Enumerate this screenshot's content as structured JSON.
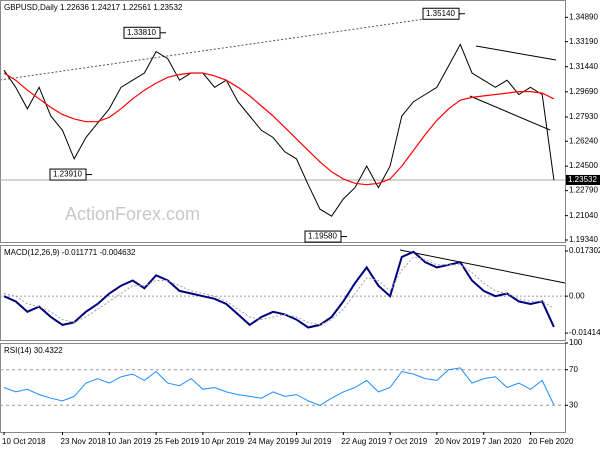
{
  "chart_data": [
    {
      "type": "line",
      "title": "GBPUSD,Daily 1.22636 1.24217 1.22561 1.23532",
      "watermark": "ActionForex.com",
      "ylim": [
        1.192,
        1.361
      ],
      "yticks": [
        {
          "value": 1.3489,
          "label": "1.34890"
        },
        {
          "value": 1.3319,
          "label": "1.33190"
        },
        {
          "value": 1.3144,
          "label": "1.31440"
        },
        {
          "value": 1.2969,
          "label": "1.29690"
        },
        {
          "value": 1.2793,
          "label": "1.27930"
        },
        {
          "value": 1.2624,
          "label": "1.26240"
        },
        {
          "value": 1.245,
          "label": "1.24500"
        },
        {
          "value": 1.2279,
          "label": "1.22790"
        },
        {
          "value": 1.2104,
          "label": "1.21040"
        },
        {
          "value": 1.1934,
          "label": "1.19340"
        }
      ],
      "grid": false,
      "last_price": {
        "value": 1.23532,
        "label": "1.23532"
      },
      "annotations": [
        {
          "value": 1.3514,
          "label": "1.35140"
        },
        {
          "value": 1.3381,
          "label": "1.33810"
        },
        {
          "value": 1.2391,
          "label": "1.23910"
        },
        {
          "value": 1.1958,
          "label": "1.19580"
        }
      ],
      "series": [
        {
          "color": "#000000",
          "values": [
            1.312,
            1.3,
            1.285,
            1.3,
            1.28,
            1.27,
            1.25,
            1.265,
            1.275,
            1.285,
            1.3,
            1.305,
            1.31,
            1.325,
            1.32,
            1.305,
            1.31,
            1.31,
            1.3,
            1.305,
            1.29,
            1.28,
            1.27,
            1.265,
            1.255,
            1.25,
            1.232,
            1.215,
            1.21,
            1.222,
            1.23,
            1.245,
            1.23,
            1.245,
            1.28,
            1.29,
            1.295,
            1.3,
            1.315,
            1.33,
            1.31,
            1.305,
            1.3,
            1.305,
            1.295,
            1.3,
            1.295,
            1.23532
          ]
        },
        {
          "color": "#ff0000",
          "values": [
            1.31,
            1.305,
            1.298,
            1.292,
            1.286,
            1.281,
            1.278,
            1.276,
            1.276,
            1.279,
            1.285,
            1.292,
            1.298,
            1.303,
            1.307,
            1.309,
            1.31,
            1.31,
            1.308,
            1.305,
            1.3,
            1.294,
            1.287,
            1.28,
            1.272,
            1.264,
            1.256,
            1.248,
            1.241,
            1.236,
            1.233,
            1.232,
            1.233,
            1.236,
            1.245,
            1.256,
            1.267,
            1.277,
            1.285,
            1.291,
            1.293,
            1.294,
            1.295,
            1.296,
            1.297,
            1.297,
            1.296,
            1.292
          ]
        }
      ]
    },
    {
      "type": "line",
      "title": "MACD(12,26,9) -0.011771 -0.004632",
      "ylim": [
        -0.0168,
        0.0196
      ],
      "yticks": [
        0.017302,
        {
          "value": 0,
          "label": "0.00"
        },
        -0.014148
      ],
      "grid": false,
      "series": [
        {
          "color": "#000080",
          "values": [
            0,
            -0.002,
            -0.006,
            -0.004,
            -0.008,
            -0.011,
            -0.01,
            -0.006,
            -0.003,
            0.001,
            0.004,
            0.006,
            0.003,
            0.008,
            0.006,
            0.002,
            0.001,
            0,
            -0.001,
            -0.003,
            -0.007,
            -0.011,
            -0.008,
            -0.006,
            -0.007,
            -0.009,
            -0.012,
            -0.011,
            -0.008,
            -0.002,
            0.005,
            0.011,
            0.004,
            0,
            0.015,
            0.017,
            0.013,
            0.011,
            0.012,
            0.013,
            0.006,
            0.002,
            0,
            0.001,
            -0.002,
            -0.003,
            -0.002,
            -0.011771
          ]
        },
        {
          "color": "#a0a0a0",
          "values": [
            0.001,
            0,
            -0.003,
            -0.004,
            -0.006,
            -0.009,
            -0.01,
            -0.008,
            -0.005,
            -0.002,
            0.001,
            0.004,
            0.004,
            0.006,
            0.006,
            0.004,
            0.002,
            0.001,
            0,
            -0.002,
            -0.005,
            -0.008,
            -0.009,
            -0.008,
            -0.007,
            -0.008,
            -0.01,
            -0.011,
            -0.009,
            -0.005,
            0.001,
            0.007,
            0.006,
            0.002,
            0.01,
            0.015,
            0.014,
            0.012,
            0.012,
            0.012,
            0.009,
            0.005,
            0.002,
            0.001,
            -0.001,
            -0.002,
            -0.002,
            -0.004632
          ]
        }
      ]
    },
    {
      "type": "line",
      "title": "RSI(14) 30.4322",
      "ylim": [
        0,
        100
      ],
      "yticks": [
        100,
        70,
        30
      ],
      "grid": true,
      "categories": [
        "10 Oct 2018",
        null,
        null,
        null,
        null,
        "23 Nov 2018",
        null,
        null,
        null,
        "10 Jan 2019",
        null,
        null,
        null,
        "25 Feb 2019",
        null,
        null,
        null,
        "10 Apr 2019",
        null,
        null,
        null,
        "24 May 2019",
        null,
        null,
        null,
        "9 Jul 2019",
        null,
        null,
        null,
        "22 Aug 2019",
        null,
        null,
        null,
        "7 Oct 2019",
        null,
        null,
        null,
        "20 Nov 2019",
        null,
        null,
        null,
        "7 Jan 2020",
        null,
        null,
        null,
        "20 Feb 2020",
        null,
        null
      ],
      "series": [
        {
          "color": "#1e90ff",
          "values": [
            50,
            45,
            48,
            42,
            38,
            35,
            40,
            55,
            60,
            55,
            62,
            65,
            58,
            68,
            55,
            52,
            60,
            48,
            50,
            45,
            42,
            40,
            38,
            45,
            40,
            42,
            35,
            30,
            38,
            45,
            50,
            58,
            45,
            50,
            68,
            65,
            60,
            58,
            70,
            72,
            55,
            60,
            62,
            50,
            55,
            48,
            58,
            30.4322
          ]
        }
      ]
    }
  ]
}
